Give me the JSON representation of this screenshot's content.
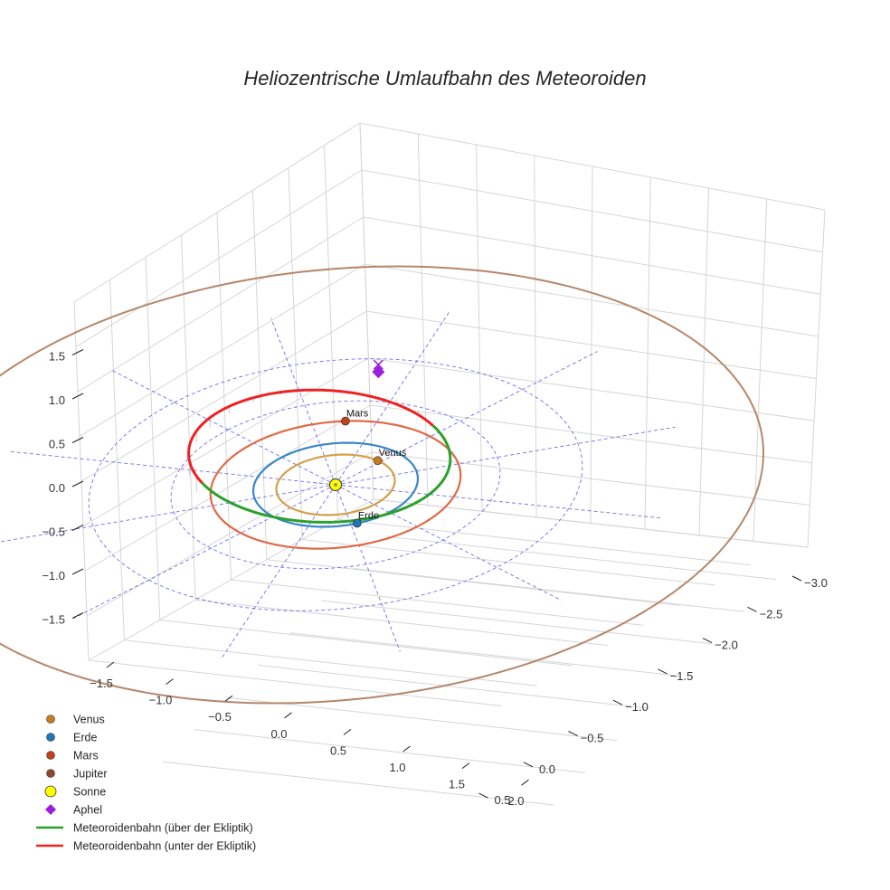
{
  "chart_data": {
    "type": "line",
    "title": "Heliozentrische Umlaufbahn des Meteoroiden",
    "xlabel": "",
    "ylabel": "",
    "zlabel": "",
    "x_ticks": [
      "−3.0",
      "−2.5",
      "−2.0",
      "−1.5",
      "−1.0",
      "−0.5",
      "0.0",
      "0.5"
    ],
    "y_ticks": [
      "−1.5",
      "−1.0",
      "−0.5",
      "0.0",
      "0.5",
      "1.0",
      "1.5",
      "2.0"
    ],
    "z_ticks": [
      "−1.5",
      "−1.0",
      "−0.5",
      "0.0",
      "0.5",
      "1.0",
      "1.5"
    ],
    "x_values": [
      -3.0,
      -2.5,
      -2.0,
      -1.5,
      -1.0,
      -0.5,
      0.0,
      0.5
    ],
    "y_values": [
      -1.5,
      -1.0,
      -0.5,
      0.0,
      0.5,
      1.0,
      1.5,
      2.0
    ],
    "z_values": [
      -1.5,
      -1.0,
      -0.5,
      0.0,
      0.5,
      1.0,
      1.5
    ],
    "grid": true,
    "legend_position": "bottom-left",
    "reference_circles_au": [
      1.0,
      2.0,
      3.0
    ],
    "orbits": [
      {
        "body": "Venus",
        "radius_au": 0.72,
        "color": "#d4a04a"
      },
      {
        "body": "Erde",
        "radius_au": 1.0,
        "color": "#3a86c8"
      },
      {
        "body": "Mars",
        "radius_au": 1.52,
        "color": "#de6a45"
      },
      {
        "body": "Jupiter",
        "radius_au": 5.2,
        "color": "#b5876a"
      }
    ],
    "planets": [
      {
        "name": "Venus",
        "x": 0.05,
        "y": 0.72,
        "label": "Venus",
        "color": "#c87a22"
      },
      {
        "name": "Erde",
        "x": -0.9,
        "y": -0.43,
        "label": "Erde",
        "color": "#1f77b4"
      },
      {
        "name": "Mars",
        "x": 1.07,
        "y": 1.08,
        "label": "Mars",
        "color": "#c0431b"
      }
    ],
    "sun": {
      "name": "Sonne",
      "x": 0.0,
      "y": 0.0,
      "color": "#ffff00"
    },
    "aphel": {
      "name": "Aphel",
      "x": 1.5,
      "y": 1.98,
      "z": 0.1,
      "color": "#9a1fdc"
    },
    "meteoroid": {
      "perihelion_au": 1.0,
      "aphelion_au": 2.49,
      "segments": [
        {
          "name": "Meteoroidenbahn (über der Ekliptik)",
          "color": "#2ca02c"
        },
        {
          "name": "Meteoroidenbahn (unter der Ekliptik)",
          "color": "#ee2222"
        }
      ]
    },
    "legend": [
      {
        "label": "Venus",
        "marker": "dot",
        "color": "#c87a22"
      },
      {
        "label": "Erde",
        "marker": "dot",
        "color": "#1f77b4"
      },
      {
        "label": "Mars",
        "marker": "dot",
        "color": "#c0431b"
      },
      {
        "label": "Jupiter",
        "marker": "dot",
        "color": "#8c4a2b"
      },
      {
        "label": "Sonne",
        "marker": "sun",
        "color": "#ffff00"
      },
      {
        "label": "Aphel",
        "marker": "diamond",
        "color": "#9a1fdc"
      },
      {
        "label": "Meteoroidenbahn (über der Ekliptik)",
        "marker": "line",
        "color": "#2ca02c"
      },
      {
        "label": "Meteoroidenbahn (unter der Ekliptik)",
        "marker": "line",
        "color": "#ee2222"
      }
    ]
  }
}
